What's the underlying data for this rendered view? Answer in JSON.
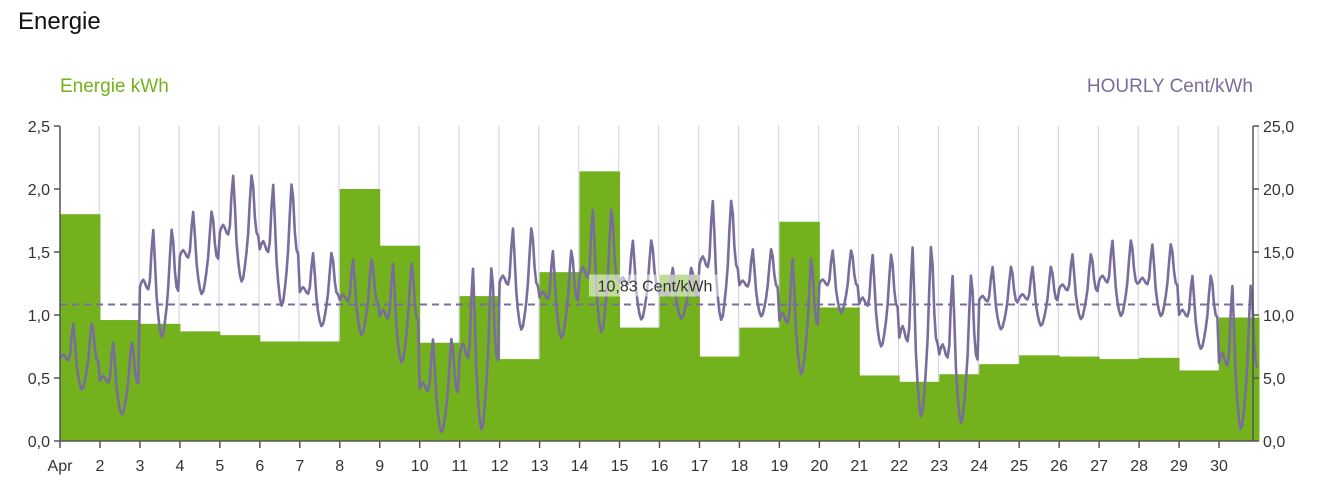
{
  "card": {
    "title": "Energie"
  },
  "colors": {
    "bar": "#73b21d",
    "line": "#7a6d9e",
    "grid": "#d7d6ea",
    "axis": "#555555"
  },
  "chart_data": {
    "type": "bar",
    "title": "",
    "left_axis": {
      "label": "Energie kWh",
      "ylim": [
        0,
        2.5
      ],
      "ticks": [
        "0,0",
        "0,5",
        "1,0",
        "1,5",
        "2,0",
        "2,5"
      ]
    },
    "right_axis": {
      "label": "HOURLY Cent/kWh",
      "ylim": [
        0,
        25
      ],
      "ticks": [
        "0,0",
        "5,0",
        "10,0",
        "15,0",
        "20,0",
        "25,0"
      ]
    },
    "categories": [
      "Apr",
      "2",
      "3",
      "4",
      "5",
      "6",
      "7",
      "8",
      "9",
      "10",
      "11",
      "12",
      "13",
      "14",
      "15",
      "16",
      "17",
      "18",
      "19",
      "20",
      "21",
      "22",
      "23",
      "24",
      "25",
      "26",
      "27",
      "28",
      "29",
      "30"
    ],
    "series": [
      {
        "name": "Energie kWh",
        "type": "bar",
        "values": [
          1.8,
          0.96,
          0.93,
          0.87,
          0.84,
          0.79,
          0.79,
          2.0,
          1.55,
          0.78,
          1.15,
          0.65,
          1.34,
          2.14,
          0.9,
          1.32,
          0.67,
          0.9,
          1.74,
          1.06,
          0.52,
          0.47,
          0.53,
          0.61,
          0.68,
          0.67,
          0.65,
          0.66,
          0.56,
          0.98
        ]
      },
      {
        "name": "HOURLY Cent/kWh",
        "type": "line",
        "min_per_day": [
          3.8,
          1.8,
          7.8,
          11.3,
          12.2,
          10.2,
          8.8,
          8.1,
          5.8,
          0.3,
          0.2,
          8.4,
          7.8,
          8.1,
          9.3,
          9.5,
          9.1,
          9.6,
          4.8,
          9.9,
          7.1,
          1.2,
          0.8,
          8.6,
          8.9,
          9.4,
          9.6,
          9.6,
          7.0,
          0.3
        ],
        "max_per_day": [
          9.4,
          7.9,
          16.9,
          18.3,
          21.2,
          20.5,
          15.0,
          14.5,
          14.2,
          8.2,
          13.9,
          17.0,
          15.2,
          18.5,
          16.0,
          13.8,
          19.2,
          15.3,
          14.6,
          15.2,
          14.9,
          15.6,
          13.3,
          13.9,
          13.9,
          14.9,
          16.0,
          15.7,
          13.2,
          12.5
        ]
      }
    ],
    "average_line": {
      "value": 10.83,
      "label": "10,83 Cent/kWh"
    },
    "grid": true,
    "legend": "none"
  }
}
